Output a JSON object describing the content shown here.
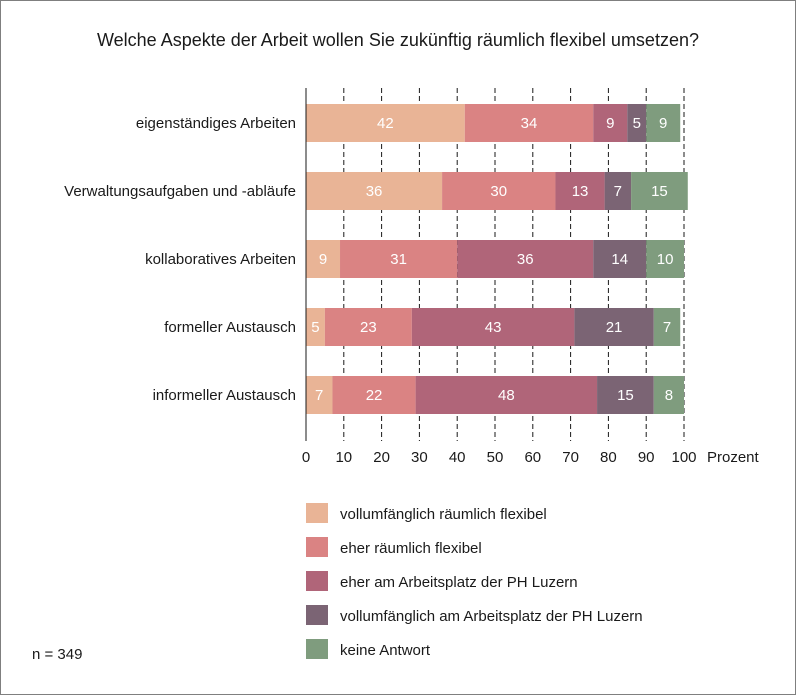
{
  "chart_data": {
    "type": "bar",
    "orientation": "horizontal",
    "stacked": true,
    "title": "Welche Aspekte der Arbeit wollen Sie zukünftig räumlich flexibel umsetzen?",
    "xlabel": "Prozent",
    "ylabel": "",
    "xlim": [
      0,
      100
    ],
    "xticks": [
      0,
      10,
      20,
      30,
      40,
      50,
      60,
      70,
      80,
      90,
      100
    ],
    "grid": "vertical dashed",
    "legend_position": "bottom",
    "categories": [
      "eigenständiges Arbeiten",
      "Verwaltungsaufgaben  und  -abläufe",
      "kollaboratives  Arbeiten",
      "formeller  Austausch",
      "informeller  Austausch"
    ],
    "series": [
      {
        "name": "vollumfänglich  räumlich  flexibel",
        "color": "#e9b496",
        "values": [
          42,
          36,
          9,
          5,
          7
        ]
      },
      {
        "name": "eher räumlich  flexibel",
        "color": "#da8383",
        "values": [
          34,
          30,
          31,
          23,
          22
        ]
      },
      {
        "name": "eher am Arbeitsplatz der PH Luzern",
        "color": "#b06579",
        "values": [
          9,
          13,
          36,
          43,
          48
        ]
      },
      {
        "name": "vollumfänglich  am Arbeitsplatz der PH Luzern",
        "color": "#7b6474",
        "values": [
          5,
          7,
          14,
          21,
          15
        ]
      },
      {
        "name": "keine Antwort",
        "color": "#7f9c7e",
        "values": [
          9,
          15,
          10,
          7,
          8
        ]
      }
    ],
    "note": "n = 349"
  }
}
